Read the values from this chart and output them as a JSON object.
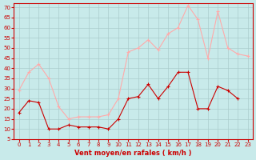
{
  "x": [
    0,
    1,
    2,
    3,
    4,
    5,
    6,
    7,
    8,
    9,
    10,
    11,
    12,
    13,
    14,
    15,
    16,
    17,
    18,
    19,
    20,
    21,
    22,
    23
  ],
  "wind_avg": [
    18,
    24,
    23,
    10,
    10,
    12,
    11,
    11,
    11,
    10,
    15,
    25,
    26,
    32,
    25,
    31,
    38,
    38,
    20,
    20,
    31,
    29,
    25,
    null
  ],
  "wind_gust": [
    29,
    38,
    42,
    35,
    21,
    15,
    16,
    16,
    16,
    17,
    25,
    48,
    50,
    54,
    49,
    57,
    60,
    71,
    64,
    45,
    68,
    50,
    47,
    46
  ],
  "bg_color": "#c8eaea",
  "grid_color": "#aacccc",
  "line_avg_color": "#cc0000",
  "line_gust_color": "#ffaaaa",
  "marker_avg_color": "#cc0000",
  "marker_gust_color": "#ffaaaa",
  "xlabel": "Vent moyen/en rafales ( km/h )",
  "ylabel_ticks": [
    5,
    10,
    15,
    20,
    25,
    30,
    35,
    40,
    45,
    50,
    55,
    60,
    65,
    70
  ],
  "xlim": [
    -0.5,
    23.5
  ],
  "ylim": [
    5,
    72
  ],
  "xlabel_color": "#cc0000",
  "tick_color": "#cc0000",
  "spine_color": "#cc0000"
}
